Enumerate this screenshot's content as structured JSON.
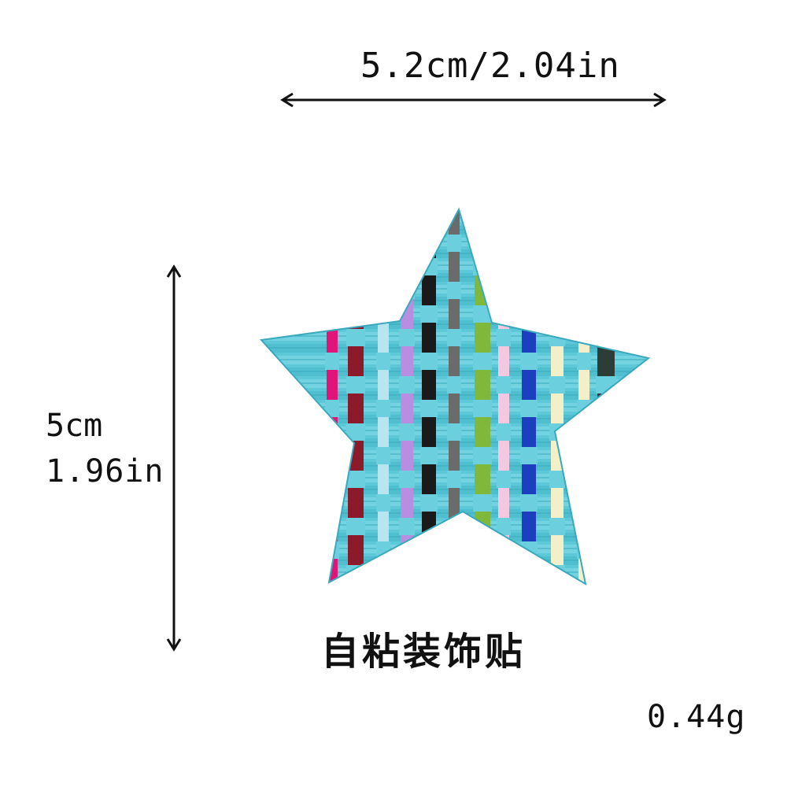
{
  "dimensions": {
    "width_label": "5.2cm/2.04in",
    "height_cm": "5cm",
    "height_in": "1.96in"
  },
  "caption": "自粘装饰贴",
  "weight": "0.44g",
  "colors": {
    "base": "#5cc8d8",
    "base_dark": "#3aa9bd",
    "strands": [
      "#e0157a",
      "#8b1a2b",
      "#b8e6f0",
      "#b88ee0",
      "#1a1a1a",
      "#6b6b6b",
      "#7fb83a",
      "#f4c8e0",
      "#1c3fbf",
      "#f3efc8",
      "#2b3d36"
    ]
  }
}
